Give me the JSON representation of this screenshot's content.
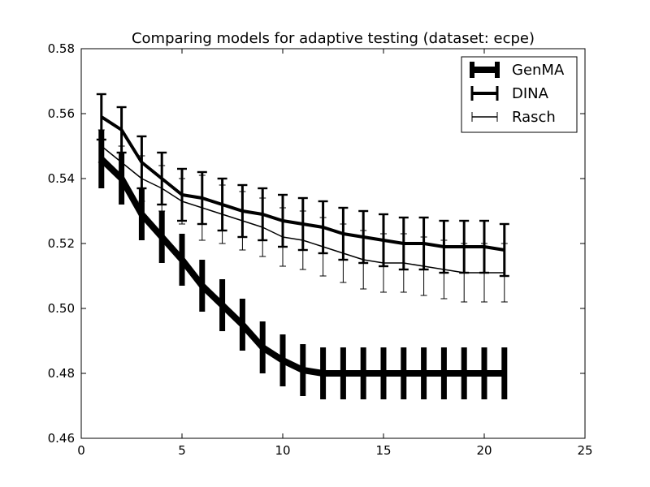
{
  "chart_data": {
    "type": "line",
    "title": "Comparing models for adaptive testing (dataset: ecpe)",
    "xlabel": "",
    "ylabel": "",
    "xlim": [
      0,
      25
    ],
    "ylim": [
      0.46,
      0.58
    ],
    "x_ticks": [
      0,
      5,
      10,
      15,
      20,
      25
    ],
    "y_ticks": [
      0.46,
      0.48,
      0.5,
      0.52,
      0.54,
      0.56,
      0.58
    ],
    "x_tick_labels": [
      "0",
      "5",
      "10",
      "15",
      "20",
      "25"
    ],
    "y_tick_labels": [
      "0.46",
      "0.48",
      "0.50",
      "0.52",
      "0.54",
      "0.56",
      "0.58"
    ],
    "grid": false,
    "legend_position": "top-right",
    "x": [
      1,
      2,
      3,
      4,
      5,
      6,
      7,
      8,
      9,
      10,
      11,
      12,
      13,
      14,
      15,
      16,
      17,
      18,
      19,
      20,
      21
    ],
    "series": [
      {
        "name": "GenMA",
        "style": "thick",
        "values": [
          0.546,
          0.54,
          0.529,
          0.522,
          0.515,
          0.507,
          0.501,
          0.495,
          0.488,
          0.484,
          0.481,
          0.48,
          0.48,
          0.48,
          0.48,
          0.48,
          0.48,
          0.48,
          0.48,
          0.48,
          0.48
        ],
        "errors": [
          0.009,
          0.008,
          0.008,
          0.008,
          0.008,
          0.008,
          0.008,
          0.008,
          0.008,
          0.008,
          0.008,
          0.008,
          0.008,
          0.008,
          0.008,
          0.008,
          0.008,
          0.008,
          0.008,
          0.008,
          0.008
        ]
      },
      {
        "name": "DINA",
        "style": "medium",
        "values": [
          0.559,
          0.555,
          0.545,
          0.54,
          0.535,
          0.534,
          0.532,
          0.53,
          0.529,
          0.527,
          0.526,
          0.525,
          0.523,
          0.522,
          0.521,
          0.52,
          0.52,
          0.519,
          0.519,
          0.519,
          0.518
        ],
        "errors": [
          0.007,
          0.007,
          0.008,
          0.008,
          0.008,
          0.008,
          0.008,
          0.008,
          0.008,
          0.008,
          0.008,
          0.008,
          0.008,
          0.008,
          0.008,
          0.008,
          0.008,
          0.008,
          0.008,
          0.008,
          0.008
        ]
      },
      {
        "name": "Rasch",
        "style": "thin",
        "values": [
          0.55,
          0.545,
          0.54,
          0.537,
          0.533,
          0.531,
          0.529,
          0.527,
          0.525,
          0.522,
          0.521,
          0.519,
          0.517,
          0.515,
          0.514,
          0.514,
          0.513,
          0.512,
          0.511,
          0.511,
          0.511
        ],
        "errors": [
          0.005,
          0.005,
          0.007,
          0.007,
          0.007,
          0.01,
          0.009,
          0.009,
          0.009,
          0.009,
          0.009,
          0.009,
          0.009,
          0.009,
          0.009,
          0.009,
          0.009,
          0.009,
          0.009,
          0.009,
          0.009
        ]
      }
    ]
  }
}
